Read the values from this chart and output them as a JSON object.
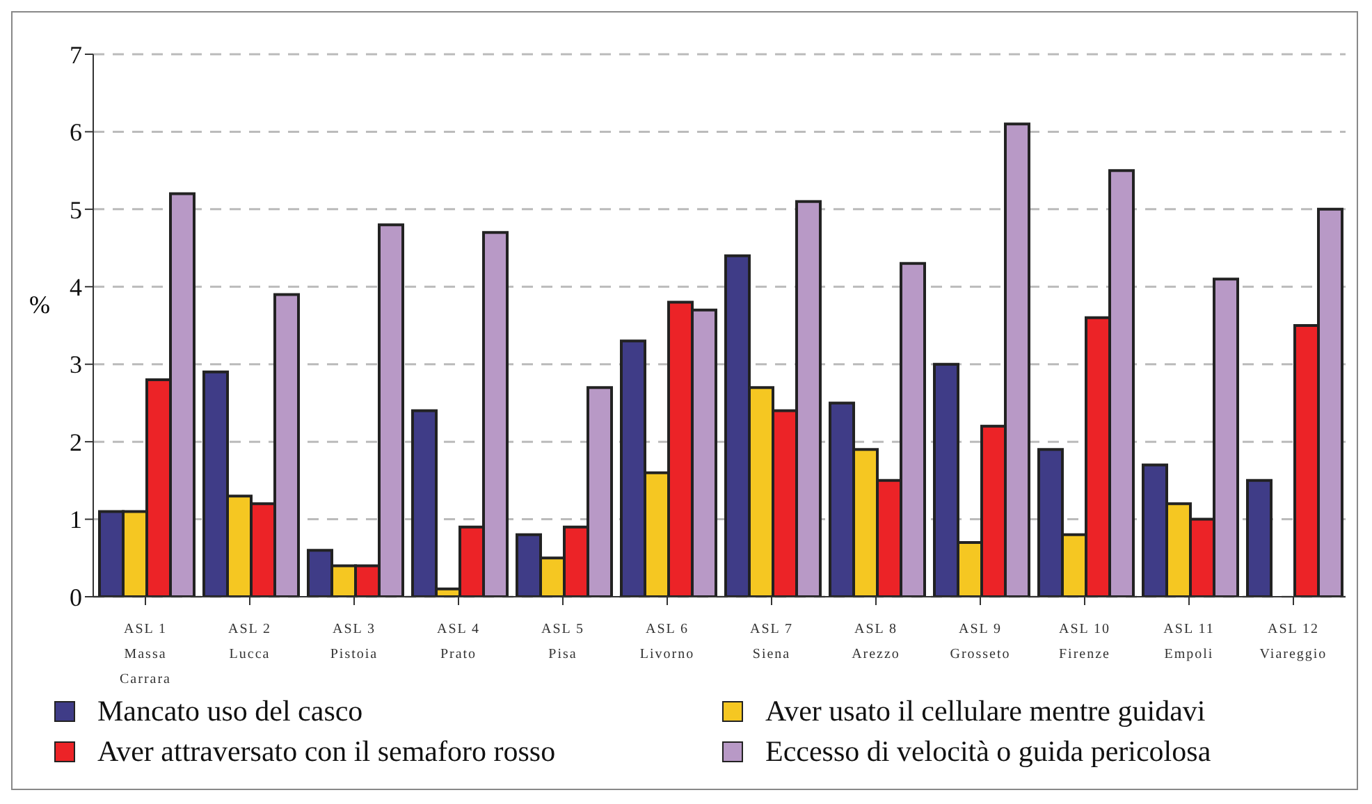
{
  "chart_data": {
    "type": "bar",
    "ylabel": "%",
    "categories": [
      "ASL 1\nMassa\nCarrara",
      "ASL 2\nLucca",
      "ASL 3\nPistoia",
      "ASL 4\nPrato",
      "ASL 5\nPisa",
      "ASL 6\nLivorno",
      "ASL 7\nSiena",
      "ASL 8\nArezzo",
      "ASL 9\nGrosseto",
      "ASL 10\nFirenze",
      "ASL 11\nEmpoli",
      "ASL 12\nViareggio"
    ],
    "series": [
      {
        "name": "Mancato uso del casco",
        "color": "#3f3c87",
        "values": [
          1.1,
          2.9,
          0.6,
          2.4,
          0.8,
          3.3,
          4.4,
          2.5,
          3.0,
          1.9,
          1.7,
          1.5
        ]
      },
      {
        "name": "Aver usato il cellulare mentre guidavi",
        "color": "#f5c722",
        "values": [
          1.1,
          1.3,
          0.4,
          0.1,
          0.5,
          1.6,
          2.7,
          1.9,
          0.7,
          0.8,
          1.2,
          null
        ]
      },
      {
        "name": "Aver attraversato con il semaforo rosso",
        "color": "#ec2327",
        "values": [
          2.8,
          1.2,
          0.4,
          0.9,
          0.9,
          3.8,
          2.4,
          1.5,
          2.2,
          3.6,
          1.0,
          3.5
        ]
      },
      {
        "name": "Eccesso di velocità o guida pericolosa",
        "color": "#b899c6",
        "values": [
          5.2,
          3.9,
          4.8,
          4.7,
          2.7,
          3.7,
          5.1,
          4.3,
          6.1,
          5.5,
          4.1,
          5.0
        ]
      }
    ],
    "ylim": [
      0,
      7
    ],
    "yticks": [
      0,
      1,
      2,
      3,
      4,
      5,
      6,
      7
    ],
    "grid": "y",
    "legend": "bottom"
  }
}
